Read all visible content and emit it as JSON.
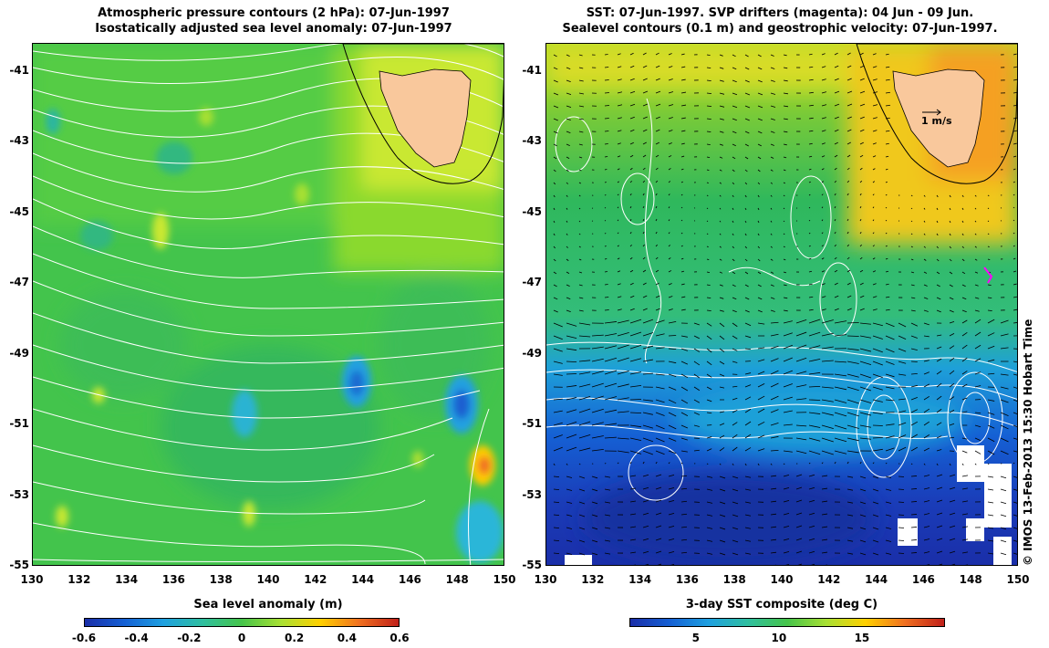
{
  "left_panel": {
    "title_line1": "Atmospheric pressure contours (2 hPa): 07-Jun-1997",
    "title_line2": "Isostatically adjusted sea level anomaly: 07-Jun-1997",
    "colorbar_title": "Sea level anomaly (m)",
    "colorbar_ticks": [
      "-0.6",
      "-0.4",
      "-0.2",
      "0",
      "0.2",
      "0.4",
      "0.6"
    ]
  },
  "right_panel": {
    "title_line1": "SST: 07-Jun-1997. SVP drifters (magenta): 04 Jun - 09 Jun.",
    "title_line2": "Sealevel contours (0.1 m) and geostrophic velocity: 07-Jun-1997.",
    "colorbar_title": "3-day SST composite (deg C)",
    "colorbar_ticks": [
      "5",
      "10",
      "15"
    ],
    "reference_vector_label": "1 m/s"
  },
  "axes": {
    "x_ticks": [
      "130",
      "132",
      "134",
      "136",
      "138",
      "140",
      "142",
      "144",
      "146",
      "148",
      "150"
    ],
    "y_ticks": [
      "-41",
      "-43",
      "-45",
      "-47",
      "-49",
      "-51",
      "-53",
      "-55"
    ],
    "lon_range": [
      130,
      150
    ],
    "lat_range": [
      -55,
      -40.2
    ]
  },
  "copyright": "© IMOS 13-Feb-2013 15:30 Hobart Time",
  "colors": {
    "land": "#f9c89c",
    "ocean_mid": "#3fc04a",
    "contour": "#ffffff",
    "drifter": "#ff00ff"
  }
}
